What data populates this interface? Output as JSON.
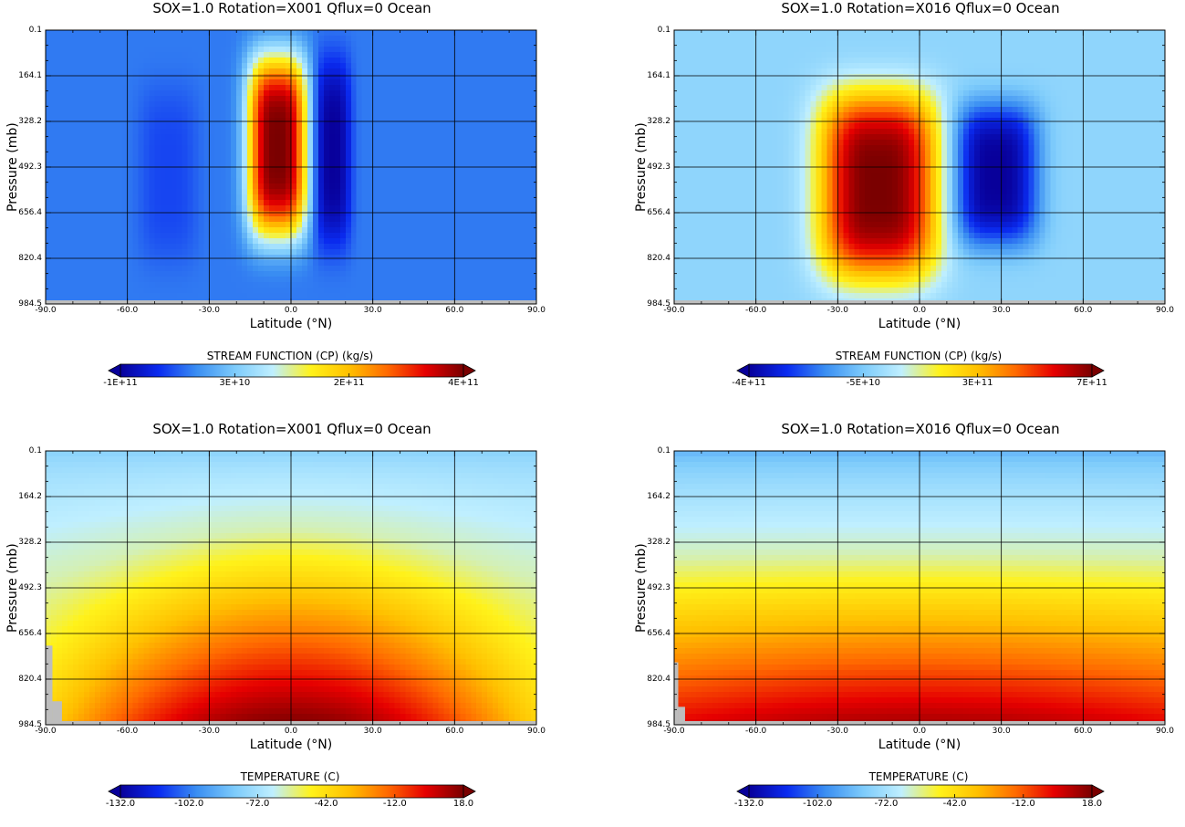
{
  "colormap": [
    "#08009a",
    "#0a2bf0",
    "#3a8ef2",
    "#7dcbfb",
    "#bfefff",
    "#fff21a",
    "#ffc000",
    "#ff6a00",
    "#e60000",
    "#7a0000"
  ],
  "gray_fill": "#bdbdbd",
  "panels": [
    {
      "title": "SOX=1.0 Rotation=X001 Qflux=0 Ocean",
      "xlabel": "Latitude (°N)",
      "ylabel": "Pressure (mb)",
      "colorbar_title": "STREAM FUNCTION (CP) (kg/s)",
      "colorbar_ticks": [
        "-1E+11",
        "3E+10",
        "2E+11",
        "4E+11"
      ],
      "chart_data": {
        "type": "heatmap",
        "title": "SOX=1.0 Rotation=X001 Qflux=0 Ocean",
        "xlabel": "Latitude (°N)",
        "ylabel": "Pressure (mb)",
        "x_ticks": [
          "-90.0",
          "-60.0",
          "-30.0",
          "0.0",
          "30.0",
          "60.0",
          "90.0"
        ],
        "y_ticks": [
          "0.1",
          "164.1",
          "328.2",
          "492.3",
          "656.4",
          "820.4",
          "984.5"
        ],
        "xlim": [
          -90,
          90
        ],
        "ylim": [
          984.5,
          0.1
        ],
        "colorbar": {
          "label": "STREAM FUNCTION (CP) (kg/s)",
          "ticks": [
            "-1E+11",
            "3E+10",
            "2E+11",
            "4E+11"
          ],
          "range": [
            -100000000000,
            400000000000
          ]
        },
        "background_value": 0,
        "features": [
          {
            "lat": -5,
            "p": 420,
            "lat_halfwidth": 11,
            "p_halfwidth": 330,
            "value": 400000000000
          },
          {
            "lat": 15,
            "p": 440,
            "lat_halfwidth": 7,
            "p_halfwidth": 340,
            "value": -100000000000
          },
          {
            "lat": -45,
            "p": 520,
            "lat_halfwidth": 11,
            "p_halfwidth": 320,
            "value": -30000000000
          }
        ],
        "grid": true
      }
    },
    {
      "title": "SOX=1.0 Rotation=X016 Qflux=0 Ocean",
      "xlabel": "Latitude (°N)",
      "ylabel": "Pressure (mb)",
      "colorbar_title": "STREAM FUNCTION (CP) (kg/s)",
      "colorbar_ticks": [
        "-4E+11",
        "-5E+10",
        "3E+11",
        "7E+11"
      ],
      "chart_data": {
        "type": "heatmap",
        "title": "SOX=1.0 Rotation=X016 Qflux=0 Ocean",
        "xlabel": "Latitude (°N)",
        "ylabel": "Pressure (mb)",
        "x_ticks": [
          "-90.0",
          "-60.0",
          "-30.0",
          "0.0",
          "30.0",
          "60.0",
          "90.0"
        ],
        "y_ticks": [
          "0.1",
          "164.1",
          "328.2",
          "492.3",
          "656.4",
          "820.4",
          "984.5"
        ],
        "xlim": [
          -90,
          90
        ],
        "ylim": [
          984.5,
          0.1
        ],
        "colorbar": {
          "label": "STREAM FUNCTION (CP) (kg/s)",
          "ticks": [
            "-4E+11",
            "-5E+10",
            "3E+11",
            "7E+11"
          ],
          "range": [
            -400000000000,
            700000000000
          ]
        },
        "background_value": 0,
        "features": [
          {
            "lat": -15,
            "p": 560,
            "lat_halfwidth": 22,
            "p_halfwidth": 340,
            "value": 700000000000
          },
          {
            "lat": 28,
            "p": 520,
            "lat_halfwidth": 16,
            "p_halfwidth": 260,
            "value": -400000000000
          }
        ],
        "grid": true
      }
    },
    {
      "title": "SOX=1.0 Rotation=X001 Qflux=0 Ocean",
      "xlabel": "Latitude (°N)",
      "ylabel": "Pressure (mb)",
      "colorbar_title": "TEMPERATURE (C)",
      "colorbar_ticks": [
        "-132.0",
        "-102.0",
        "-72.0",
        "-42.0",
        "-12.0",
        "18.0"
      ],
      "chart_data": {
        "type": "heatmap",
        "title": "SOX=1.0 Rotation=X001 Qflux=0 Ocean",
        "xlabel": "Latitude (°N)",
        "ylabel": "Pressure (mb)",
        "x_ticks": [
          "-90.0",
          "-60.0",
          "-30.0",
          "0.0",
          "30.0",
          "60.0",
          "90.0"
        ],
        "y_ticks": [
          "0.1",
          "164.2",
          "328.2",
          "492.3",
          "656.4",
          "820.4",
          "984.5"
        ],
        "xlim": [
          -90,
          90
        ],
        "ylim": [
          984.5,
          0.1
        ],
        "colorbar": {
          "label": "TEMPERATURE (C)",
          "ticks": [
            "-132.0",
            "-102.0",
            "-72.0",
            "-42.0",
            "-12.0",
            "18.0"
          ],
          "range": [
            -132,
            18
          ]
        },
        "field": {
          "top": -80,
          "surface_equator": 18,
          "surface_pole": -38,
          "tropopause_equator": 280,
          "tropopause_pole": 460
        },
        "topography": [
          {
            "lat": [
              -90,
              -87.5
            ],
            "p_top": 700
          },
          {
            "lat": [
              -87.5,
              -84
            ],
            "p_top": 900
          }
        ],
        "grid": true
      }
    },
    {
      "title": "SOX=1.0 Rotation=X016 Qflux=0 Ocean",
      "xlabel": "Latitude (°N)",
      "ylabel": "Pressure (mb)",
      "colorbar_title": "TEMPERATURE (C)",
      "colorbar_ticks": [
        "-132.0",
        "-102.0",
        "-72.0",
        "-42.0",
        "-12.0",
        "18.0"
      ],
      "chart_data": {
        "type": "heatmap",
        "title": "SOX=1.0 Rotation=X016 Qflux=0 Ocean",
        "xlabel": "Latitude (°N)",
        "ylabel": "Pressure (mb)",
        "x_ticks": [
          "-90.0",
          "-60.0",
          "-30.0",
          "0.0",
          "30.0",
          "60.0",
          "90.0"
        ],
        "y_ticks": [
          "0.1",
          "164.2",
          "328.2",
          "492.3",
          "656.4",
          "820.4",
          "984.5"
        ],
        "xlim": [
          -90,
          90
        ],
        "ylim": [
          984.5,
          0.1
        ],
        "colorbar": {
          "label": "TEMPERATURE (C)",
          "ticks": [
            "-132.0",
            "-102.0",
            "-72.0",
            "-42.0",
            "-12.0",
            "18.0"
          ],
          "range": [
            -132,
            18
          ]
        },
        "field": {
          "top": -90,
          "surface_equator": 12,
          "surface_pole": 2,
          "tropopause_equator": 370,
          "tropopause_pole": 380
        },
        "topography": [
          {
            "lat": [
              -90,
              -88.5
            ],
            "p_top": 760
          },
          {
            "lat": [
              -88.5,
              -86
            ],
            "p_top": 920
          }
        ],
        "grid": true
      }
    }
  ]
}
